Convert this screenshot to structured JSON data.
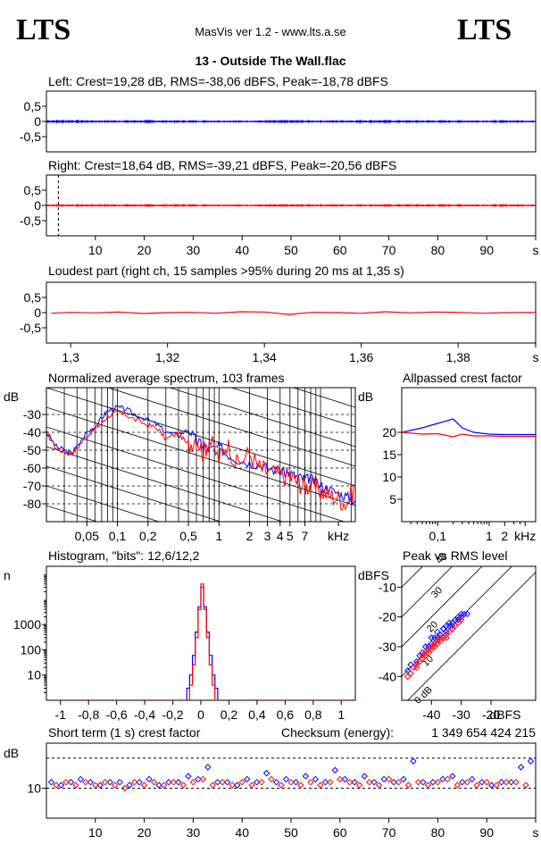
{
  "header": {
    "logo_left": "LTS",
    "logo_right": "LTS",
    "app_title": "MasVis ver 1.2 - www.lts.a.se",
    "track_title": "13 - Outside The Wall.flac"
  },
  "colors": {
    "left_channel": "#0000ff",
    "right_channel": "#ff0000",
    "axes": "#000000",
    "grid": "#000000"
  },
  "chart_data": [
    {
      "id": "left_waveform",
      "type": "line",
      "title": "Left: Crest=19,28 dB, RMS=-38,06 dBFS, Peak=-18,78 dBFS",
      "y_tick_labels": [
        "0,5",
        "0",
        "-0,5"
      ],
      "y_ticks": [
        0.5,
        0,
        -0.5
      ],
      "ylim": [
        -1,
        1
      ],
      "xlim": [
        0,
        100
      ],
      "series": [
        {
          "color": "#0000ff",
          "envelope": [
            [
              0,
              0.04
            ],
            [
              5,
              0.04
            ],
            [
              10,
              0.03
            ],
            [
              15,
              0.03
            ],
            [
              20,
              0.035
            ],
            [
              25,
              0.03
            ],
            [
              30,
              0.03
            ],
            [
              35,
              0.03
            ],
            [
              40,
              0.025
            ],
            [
              45,
              0.03
            ],
            [
              50,
              0.035
            ],
            [
              55,
              0.03
            ],
            [
              60,
              0.03
            ],
            [
              65,
              0.04
            ],
            [
              70,
              0.035
            ],
            [
              75,
              0.03
            ],
            [
              80,
              0.03
            ],
            [
              85,
              0.03
            ],
            [
              90,
              0.03
            ],
            [
              95,
              0.03
            ],
            [
              100,
              0.03
            ]
          ]
        }
      ]
    },
    {
      "id": "right_waveform",
      "type": "line",
      "title": "Right: Crest=18,64 dB, RMS=-39,21 dBFS, Peak=-20,56 dBFS",
      "y_tick_labels": [
        "0,5",
        "0",
        "-0,5"
      ],
      "y_ticks": [
        0.5,
        0,
        -0.5
      ],
      "ylim": [
        -1,
        1
      ],
      "xlim": [
        0,
        100
      ],
      "x_tick_labels": [
        "10",
        "20",
        "30",
        "40",
        "50",
        "60",
        "70",
        "80",
        "90",
        "s"
      ],
      "x_ticks": [
        10,
        20,
        30,
        40,
        50,
        60,
        70,
        80,
        90,
        100
      ],
      "marker_x": 1.35,
      "series": [
        {
          "color": "#ff0000",
          "envelope": [
            [
              0,
              0.03
            ],
            [
              10,
              0.03
            ],
            [
              20,
              0.03
            ],
            [
              30,
              0.03
            ],
            [
              40,
              0.025
            ],
            [
              50,
              0.03
            ],
            [
              60,
              0.03
            ],
            [
              70,
              0.03
            ],
            [
              80,
              0.03
            ],
            [
              90,
              0.03
            ],
            [
              100,
              0.03
            ]
          ]
        }
      ]
    },
    {
      "id": "loudest_part",
      "type": "line",
      "title": "Loudest part (right ch, 15 samples >95% during 20 ms at 1,35 s)",
      "y_tick_labels": [
        "0,5",
        "0",
        "-0,5"
      ],
      "y_ticks": [
        0.5,
        0,
        -0.5
      ],
      "ylim": [
        -1,
        1
      ],
      "xlim": [
        1.295,
        1.396
      ],
      "x_tick_labels": [
        "1,3",
        "1,32",
        "1,34",
        "1,36",
        "1,38",
        "s"
      ],
      "x_ticks": [
        1.3,
        1.32,
        1.34,
        1.36,
        1.38,
        1.396
      ],
      "series": [
        {
          "color": "#ff0000",
          "x": [
            1.296,
            1.3,
            1.305,
            1.31,
            1.315,
            1.32,
            1.325,
            1.33,
            1.335,
            1.34,
            1.345,
            1.35,
            1.355,
            1.36,
            1.365,
            1.37,
            1.375,
            1.38,
            1.385,
            1.39,
            1.396
          ],
          "y": [
            -0.02,
            0.01,
            -0.01,
            0.02,
            -0.03,
            0.0,
            0.01,
            -0.02,
            0.03,
            0.02,
            -0.06,
            0.01,
            0.0,
            -0.02,
            0.03,
            -0.01,
            0.02,
            0.01,
            -0.02,
            0.0,
            0.01
          ]
        }
      ]
    },
    {
      "id": "average_spectrum",
      "type": "line",
      "title": "Normalized average spectrum, 103 frames",
      "ylabel": "dB",
      "y_tick_labels": [
        "-30",
        "-40",
        "-50",
        "-60",
        "-70",
        "-80"
      ],
      "y_ticks": [
        -30,
        -40,
        -50,
        -60,
        -70,
        -80
      ],
      "ylim": [
        -90,
        -15
      ],
      "x_scale": "log",
      "xlim": [
        0.02,
        22
      ],
      "x_tick_labels": [
        "0,05",
        "0,1",
        "0,2",
        "0,5",
        "1",
        "2",
        "3",
        "4",
        "5",
        "7",
        "kHz"
      ],
      "x_ticks": [
        0.05,
        0.1,
        0.2,
        0.5,
        1,
        2,
        3,
        4,
        5,
        7,
        15
      ],
      "series": [
        {
          "color": "#0000ff",
          "x": [
            0.02,
            0.025,
            0.03,
            0.035,
            0.04,
            0.05,
            0.06,
            0.07,
            0.08,
            0.1,
            0.12,
            0.15,
            0.2,
            0.25,
            0.3,
            0.4,
            0.5,
            0.6,
            0.7,
            0.8,
            1,
            1.2,
            1.5,
            2,
            2.5,
            3,
            4,
            5,
            6,
            7,
            8,
            10,
            12,
            15,
            18,
            22
          ],
          "y": [
            -40,
            -48,
            -50,
            -52,
            -48,
            -40,
            -37,
            -32,
            -28,
            -26,
            -27,
            -30,
            -33,
            -36,
            -40,
            -42,
            -38,
            -45,
            -47,
            -50,
            -48,
            -52,
            -55,
            -57,
            -58,
            -60,
            -62,
            -63,
            -65,
            -66,
            -66,
            -70,
            -72,
            -74,
            -76,
            -78
          ]
        },
        {
          "color": "#ff0000",
          "x": [
            0.02,
            0.025,
            0.03,
            0.035,
            0.04,
            0.05,
            0.06,
            0.07,
            0.08,
            0.1,
            0.12,
            0.15,
            0.2,
            0.25,
            0.3,
            0.4,
            0.5,
            0.6,
            0.7,
            0.8,
            1,
            1.2,
            1.5,
            2,
            2.5,
            3,
            4,
            5,
            6,
            7,
            8,
            10,
            12,
            15,
            18,
            22
          ],
          "y": [
            -40,
            -49,
            -51,
            -52,
            -49,
            -42,
            -38,
            -35,
            -31,
            -29,
            -30,
            -33,
            -36,
            -38,
            -44,
            -40,
            -48,
            -42,
            -52,
            -44,
            -55,
            -46,
            -58,
            -52,
            -60,
            -62,
            -64,
            -65,
            -68,
            -70,
            -70,
            -73,
            -75,
            -77,
            -80,
            -70
          ]
        }
      ]
    },
    {
      "id": "allpassed_crest",
      "type": "line",
      "title": "Allpassed crest factor",
      "ylabel": "dB",
      "y_tick_labels": [
        "20",
        "15",
        "10",
        "5"
      ],
      "y_ticks": [
        20,
        15,
        10,
        5
      ],
      "ylim": [
        0,
        30
      ],
      "x_scale": "log",
      "xlim": [
        0.02,
        8
      ],
      "x_tick_labels": [
        "0,1",
        "1",
        "2",
        "kHz"
      ],
      "x_ticks": [
        0.1,
        1,
        2,
        5
      ],
      "series": [
        {
          "color": "#0000ff",
          "x": [
            0.02,
            0.05,
            0.1,
            0.2,
            0.3,
            0.5,
            1,
            2,
            5,
            8
          ],
          "y": [
            20,
            21,
            22,
            23,
            21,
            20,
            19.6,
            19.5,
            19.5,
            19.5
          ]
        },
        {
          "color": "#ff0000",
          "x": [
            0.02,
            0.05,
            0.1,
            0.2,
            0.3,
            0.5,
            1,
            2,
            5,
            8
          ],
          "y": [
            20,
            19.6,
            19.7,
            19,
            19.6,
            19.2,
            19.2,
            19.1,
            19.1,
            19.1
          ]
        }
      ]
    },
    {
      "id": "histogram",
      "type": "line",
      "title": "Histogram, \"bits\": 12,6/12,2",
      "ylabel": "n",
      "y_scale": "log",
      "y_tick_labels": [
        "1000",
        "100",
        "10"
      ],
      "y_ticks": [
        1000,
        100,
        10
      ],
      "ylim": [
        1,
        200000
      ],
      "xlim": [
        -1.1,
        1.1
      ],
      "x_tick_labels": [
        "-1",
        "-0,8",
        "-0,6",
        "-0,4",
        "-0,2",
        "0",
        "0,2",
        "0,4",
        "0,6",
        "0,8",
        "1"
      ],
      "x_ticks": [
        -1,
        -0.8,
        -0.6,
        -0.4,
        -0.2,
        0,
        0.2,
        0.4,
        0.6,
        0.8,
        1
      ],
      "series": [
        {
          "color": "#0000ff",
          "x": [
            -1.1,
            -0.12,
            -0.1,
            -0.08,
            -0.06,
            -0.04,
            -0.02,
            0,
            0.02,
            0.04,
            0.06,
            0.08,
            0.1,
            0.12,
            1.1
          ],
          "y": [
            1,
            1,
            3,
            10,
            60,
            500,
            5000,
            30000,
            5000,
            500,
            60,
            10,
            3,
            1,
            1
          ]
        },
        {
          "color": "#ff0000",
          "x": [
            -1.1,
            -0.1,
            -0.08,
            -0.06,
            -0.04,
            -0.02,
            0,
            0.02,
            0.04,
            0.06,
            0.08,
            0.1,
            1.1
          ],
          "y": [
            1,
            1,
            4,
            25,
            300,
            4000,
            40000,
            4000,
            300,
            25,
            4,
            1,
            1
          ]
        }
      ]
    },
    {
      "id": "peak_vs_rms",
      "type": "scatter",
      "title": "Peak vs RMS level",
      "ylabel": "dBFS",
      "xlabel": "dBFS",
      "y_tick_labels": [
        "-10",
        "-20",
        "-30",
        "-40"
      ],
      "y_ticks": [
        -10,
        -20,
        -30,
        -40
      ],
      "ylim": [
        -48,
        -3
      ],
      "x_tick_labels": [
        "-40",
        "-30",
        "-20"
      ],
      "x_ticks": [
        -40,
        -30,
        -20
      ],
      "xlim": [
        -50,
        -5
      ],
      "diagonal_labels": [
        "40",
        "30",
        "20",
        "10",
        "0 dB"
      ],
      "diagonal_offsets": [
        40,
        30,
        20,
        10,
        0
      ],
      "series": [
        {
          "color": "#0000ff",
          "x": [
            -48,
            -47,
            -45,
            -44,
            -43,
            -42,
            -41,
            -40,
            -39,
            -38,
            -37,
            -36,
            -35,
            -34,
            -33,
            -32,
            -31,
            -30,
            -29,
            -28,
            -40,
            -38,
            -36,
            -34,
            -32,
            -30,
            -35,
            -33,
            -31,
            -37
          ],
          "y": [
            -38,
            -36,
            -35,
            -33,
            -32,
            -30,
            -30,
            -29,
            -27,
            -27,
            -26,
            -24,
            -23,
            -23,
            -22,
            -21,
            -20,
            -20,
            -19,
            -19,
            -27,
            -25,
            -24,
            -22,
            -21,
            -19,
            -25,
            -23,
            -21,
            -26
          ]
        },
        {
          "color": "#ff0000",
          "x": [
            -48,
            -47,
            -46,
            -45,
            -44,
            -43,
            -42,
            -41,
            -40,
            -39,
            -38,
            -37,
            -36,
            -35,
            -34,
            -33,
            -32,
            -31,
            -30,
            -45,
            -43,
            -41,
            -39,
            -37,
            -35,
            -33,
            -44,
            -42,
            -40,
            -38
          ],
          "y": [
            -40,
            -39,
            -37,
            -37,
            -35,
            -34,
            -33,
            -32,
            -31,
            -30,
            -29,
            -28,
            -27,
            -27,
            -25,
            -24,
            -23,
            -22,
            -21,
            -36,
            -33,
            -31,
            -29,
            -27,
            -26,
            -24,
            -35,
            -32,
            -30,
            -28
          ]
        }
      ]
    },
    {
      "id": "short_term_crest",
      "type": "scatter",
      "title": "Short term (1 s) crest factor",
      "ylabel": "dB",
      "y_tick_labels": [
        "10"
      ],
      "y_ticks": [
        10
      ],
      "ylim": [
        0,
        25
      ],
      "dashed_levels": [
        10,
        20
      ],
      "xlim": [
        0,
        100
      ],
      "x_tick_labels": [
        "10",
        "20",
        "30",
        "40",
        "50",
        "60",
        "70",
        "80",
        "90",
        "s"
      ],
      "x_ticks": [
        10,
        20,
        30,
        40,
        50,
        60,
        70,
        80,
        90,
        100
      ],
      "series": [
        {
          "color": "#0000ff",
          "x": [
            1,
            3,
            5,
            7,
            9,
            11,
            13,
            15,
            17,
            19,
            21,
            23,
            25,
            27,
            29,
            31,
            33,
            35,
            37,
            39,
            41,
            43,
            45,
            47,
            49,
            51,
            53,
            55,
            57,
            59,
            61,
            63,
            65,
            67,
            69,
            71,
            73,
            75,
            77,
            79,
            81,
            83,
            85,
            87,
            89,
            91,
            93,
            95,
            97,
            99
          ],
          "y": [
            12,
            11,
            12,
            13,
            12,
            11,
            12,
            12,
            11,
            12,
            13,
            11,
            12,
            12,
            14,
            13,
            17,
            12,
            12,
            11,
            13,
            12,
            15,
            12,
            13,
            12,
            14,
            13,
            12,
            16,
            13,
            12,
            14,
            12,
            13,
            12,
            13,
            19,
            12,
            12,
            13,
            14,
            12,
            13,
            12,
            11,
            12,
            12,
            17,
            19
          ]
        },
        {
          "color": "#ff0000",
          "x": [
            2,
            4,
            6,
            8,
            10,
            12,
            14,
            16,
            18,
            20,
            22,
            24,
            26,
            28,
            30,
            32,
            34,
            36,
            38,
            40,
            42,
            44,
            46,
            48,
            50,
            52,
            54,
            56,
            58,
            60,
            62,
            64,
            66,
            68,
            70,
            72,
            74,
            76,
            78,
            80,
            82,
            84,
            86,
            88,
            90,
            92,
            94,
            96,
            98
          ],
          "y": [
            11,
            12,
            11,
            12,
            11,
            12,
            11,
            10,
            12,
            11,
            12,
            11,
            12,
            11,
            12,
            13,
            11,
            12,
            11,
            12,
            11,
            12,
            13,
            11,
            12,
            11,
            12,
            11,
            12,
            13,
            12,
            11,
            12,
            11,
            13,
            12,
            11,
            12,
            11,
            12,
            13,
            11,
            12,
            11,
            12,
            11,
            12,
            12,
            11
          ]
        }
      ]
    }
  ],
  "footer": {
    "checksum_label": "Checksum (energy):",
    "checksum_value": "1 349 654 424 215"
  }
}
